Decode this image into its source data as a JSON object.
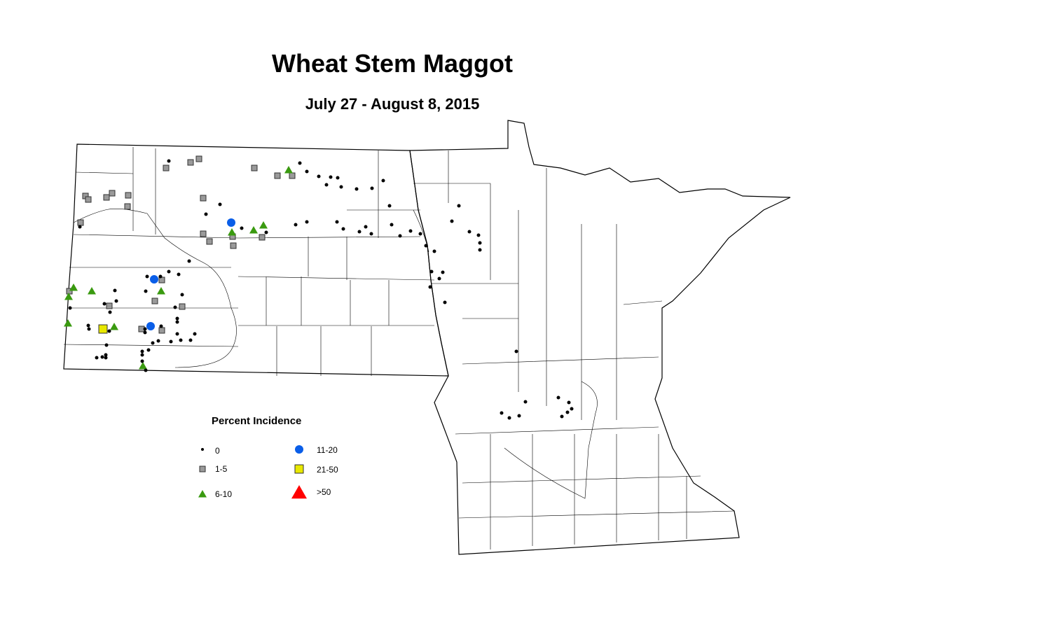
{
  "title": "Wheat Stem Maggot",
  "subtitle": "July 27 - August 8, 2015",
  "legend": {
    "title": "Percent Incidence",
    "items": [
      {
        "key": "c0",
        "label": "0",
        "shape": "dot",
        "color": "#000000"
      },
      {
        "key": "c1",
        "label": "1-5",
        "shape": "square",
        "color": "#9a9a9a"
      },
      {
        "key": "c2",
        "label": "6-10",
        "shape": "triangle",
        "color": "#3a9a10"
      },
      {
        "key": "c3",
        "label": "11-20",
        "shape": "circle",
        "color": "#0a5ee8"
      },
      {
        "key": "c4",
        "label": "21-50",
        "shape": "square",
        "color": "#e8e800"
      },
      {
        "key": "c5",
        "label": ">50",
        "shape": "triangle",
        "color": "#ff0000"
      }
    ]
  }
}
